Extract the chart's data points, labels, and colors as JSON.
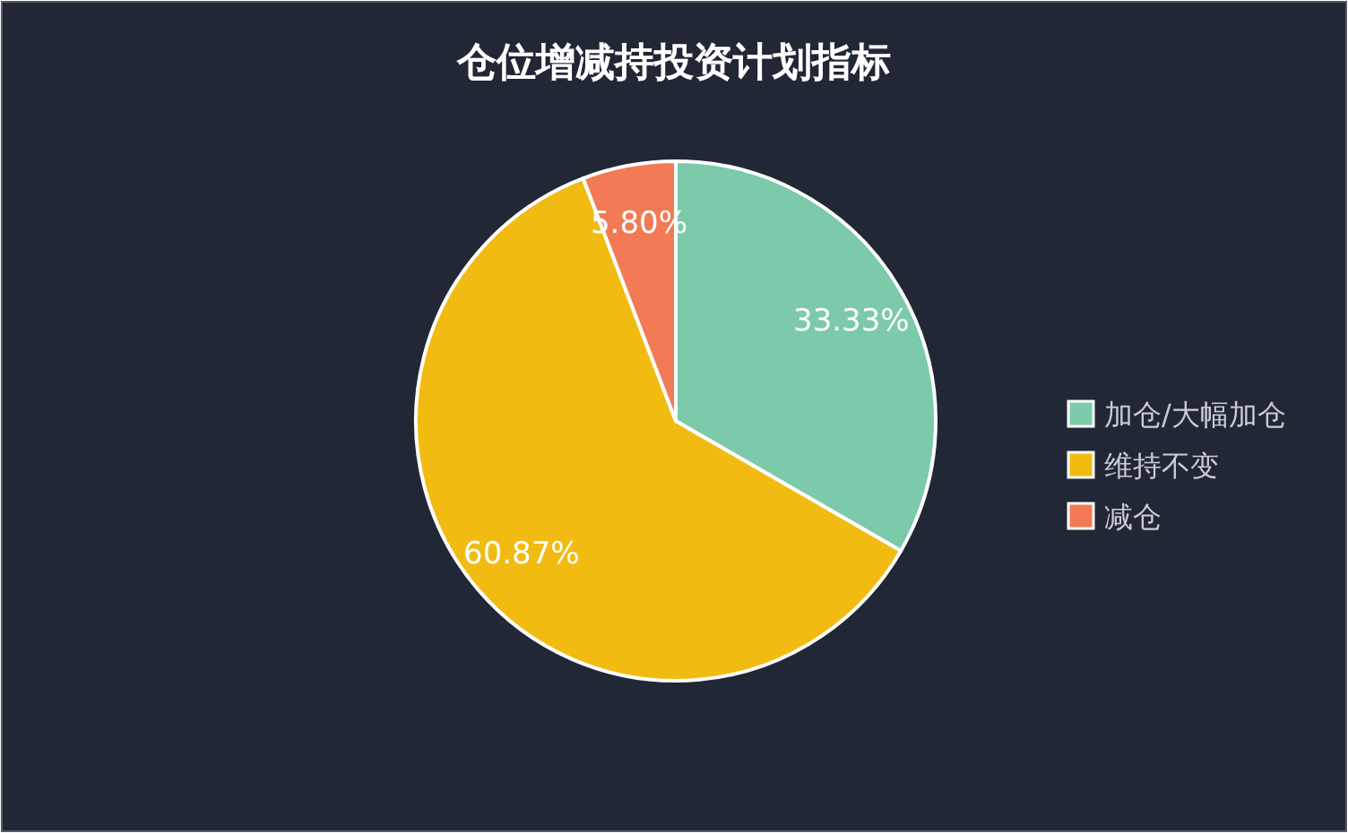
{
  "chart_data": {
    "type": "pie",
    "title": "仓位增减持投资计划指标",
    "categories": [
      "加仓/大幅加仓",
      "维持不变",
      "减仓"
    ],
    "values": [
      33.33,
      60.87,
      5.8
    ],
    "value_labels": [
      "33.33%",
      "60.87%",
      "5.80%"
    ],
    "colors": [
      "#7ccaaa",
      "#f2bb12",
      "#f27a55"
    ],
    "legend": "right"
  }
}
